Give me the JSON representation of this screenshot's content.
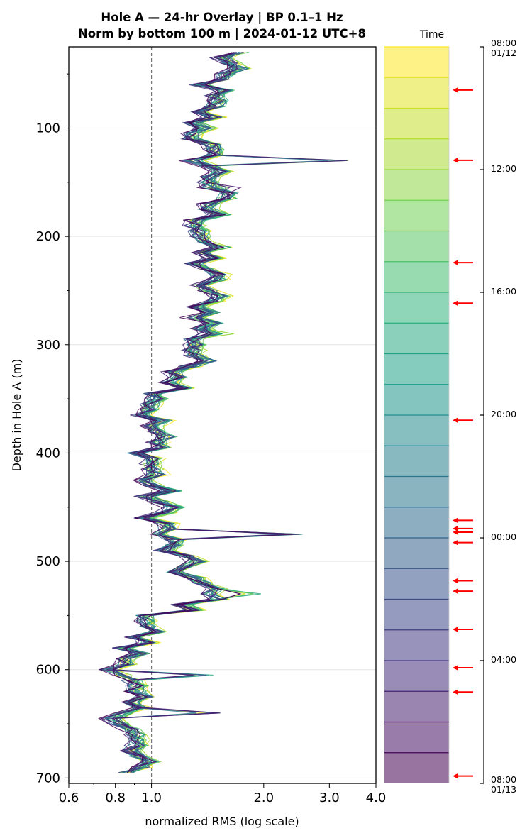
{
  "chart_data": {
    "type": "line",
    "title_line1": "Hole A — 24-hr Overlay  |  BP 0.1–1 Hz",
    "title_line2": "Norm by bottom 100 m  |  2024-01-12 UTC+8",
    "xlabel": "normalized RMS  (log scale)",
    "ylabel": "Depth in Hole A (m)",
    "x_scale": "log",
    "xlim": [
      0.6,
      4.0
    ],
    "ylim": [
      705,
      25
    ],
    "x_ticks": [
      0.6,
      0.8,
      1.0,
      2.0,
      3.0,
      4.0
    ],
    "x_tick_labels": [
      "0.6",
      "0.8",
      "1.0",
      "2.0",
      "3.0",
      "4.0"
    ],
    "y_ticks": [
      100,
      200,
      300,
      400,
      500,
      600,
      700
    ],
    "y_tick_labels": [
      "100",
      "200",
      "300",
      "400",
      "500",
      "600",
      "700"
    ],
    "reference_line_x": 1.0,
    "grid": "horizontal",
    "depth_range": [
      30,
      695
    ],
    "series_count": 24,
    "colormap": "viridis",
    "trend": [
      [
        30,
        1.65
      ],
      [
        60,
        1.45
      ],
      [
        90,
        1.38
      ],
      [
        120,
        1.36
      ],
      [
        150,
        1.5
      ],
      [
        180,
        1.42
      ],
      [
        210,
        1.38
      ],
      [
        240,
        1.4
      ],
      [
        270,
        1.43
      ],
      [
        300,
        1.35
      ],
      [
        330,
        1.25
      ],
      [
        360,
        1.0
      ],
      [
        390,
        1.02
      ],
      [
        420,
        1.0
      ],
      [
        450,
        1.05
      ],
      [
        480,
        1.08
      ],
      [
        510,
        1.25
      ],
      [
        535,
        1.45
      ],
      [
        550,
        1.05
      ],
      [
        580,
        0.88
      ],
      [
        610,
        0.85
      ],
      [
        640,
        0.87
      ],
      [
        670,
        0.88
      ],
      [
        695,
        0.92
      ]
    ],
    "spikes": [
      [
        130,
        3.5
      ],
      [
        155,
        1.82
      ],
      [
        290,
        1.77
      ],
      [
        475,
        2.6
      ],
      [
        530,
        1.99
      ],
      [
        605,
        1.5
      ],
      [
        640,
        1.55
      ]
    ],
    "colorbar": {
      "label": "Time",
      "tick_labels": [
        "08:00\n01/12",
        "12:00",
        "16:00",
        "20:00",
        "00:00",
        "04:00",
        "08:00\n01/13"
      ],
      "tick_fractions": [
        0,
        0.1667,
        0.3333,
        0.5,
        0.6667,
        0.8333,
        1.0
      ],
      "bands": 24,
      "arrow_fractions": [
        0.0586,
        0.154,
        0.293,
        0.348,
        0.507,
        0.643,
        0.654,
        0.659,
        0.673,
        0.725,
        0.739,
        0.791,
        0.843,
        0.876,
        0.99
      ],
      "arrow_color": "#ff0000"
    }
  }
}
